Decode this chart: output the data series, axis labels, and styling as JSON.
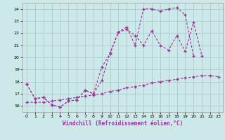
{
  "xlabel": "Windchill (Refroidissement éolien,°C)",
  "bg_color": "#cce8e8",
  "grid_color": "#aacccc",
  "line_color": "#993399",
  "xlim": [
    -0.5,
    23.5
  ],
  "ylim": [
    15.5,
    24.5
  ],
  "xticks": [
    0,
    1,
    2,
    3,
    4,
    5,
    6,
    7,
    8,
    9,
    10,
    11,
    12,
    13,
    14,
    15,
    16,
    17,
    18,
    19,
    20,
    21,
    22,
    23
  ],
  "yticks": [
    16,
    17,
    18,
    19,
    20,
    21,
    22,
    23,
    24
  ],
  "line1_x": [
    0,
    1,
    2,
    3,
    4,
    5,
    6,
    7,
    8,
    9,
    10,
    11,
    12,
    13,
    14,
    15,
    16,
    17,
    18,
    19,
    20,
    21,
    22,
    23
  ],
  "line1_y": [
    17.8,
    16.6,
    16.7,
    16.1,
    15.9,
    16.4,
    16.5,
    17.3,
    17.0,
    18.1,
    20.4,
    22.1,
    22.3,
    21.8,
    21.0,
    22.2,
    21.0,
    20.6,
    21.8,
    20.5,
    22.9,
    20.1,
    null,
    null
  ],
  "line2_x": [
    0,
    1,
    2,
    3,
    4,
    5,
    6,
    7,
    8,
    9,
    10,
    11,
    12,
    13,
    14,
    15,
    16,
    17,
    18,
    19,
    20,
    21,
    22,
    23
  ],
  "line2_y": [
    17.8,
    16.6,
    16.7,
    16.1,
    15.9,
    16.4,
    16.5,
    17.3,
    17.0,
    19.2,
    20.3,
    22.1,
    22.5,
    21.0,
    24.0,
    24.0,
    23.8,
    24.0,
    24.1,
    23.5,
    20.1,
    null,
    null,
    null
  ],
  "line3_x": [
    0,
    1,
    2,
    3,
    4,
    5,
    6,
    7,
    8,
    9,
    10,
    11,
    12,
    13,
    14,
    15,
    16,
    17,
    18,
    19,
    20,
    21,
    22,
    23
  ],
  "line3_y": [
    16.3,
    16.3,
    16.3,
    16.4,
    16.5,
    16.6,
    16.7,
    16.8,
    16.9,
    17.0,
    17.2,
    17.3,
    17.5,
    17.6,
    17.7,
    17.9,
    18.0,
    18.1,
    18.2,
    18.3,
    18.4,
    18.5,
    18.5,
    18.4
  ]
}
